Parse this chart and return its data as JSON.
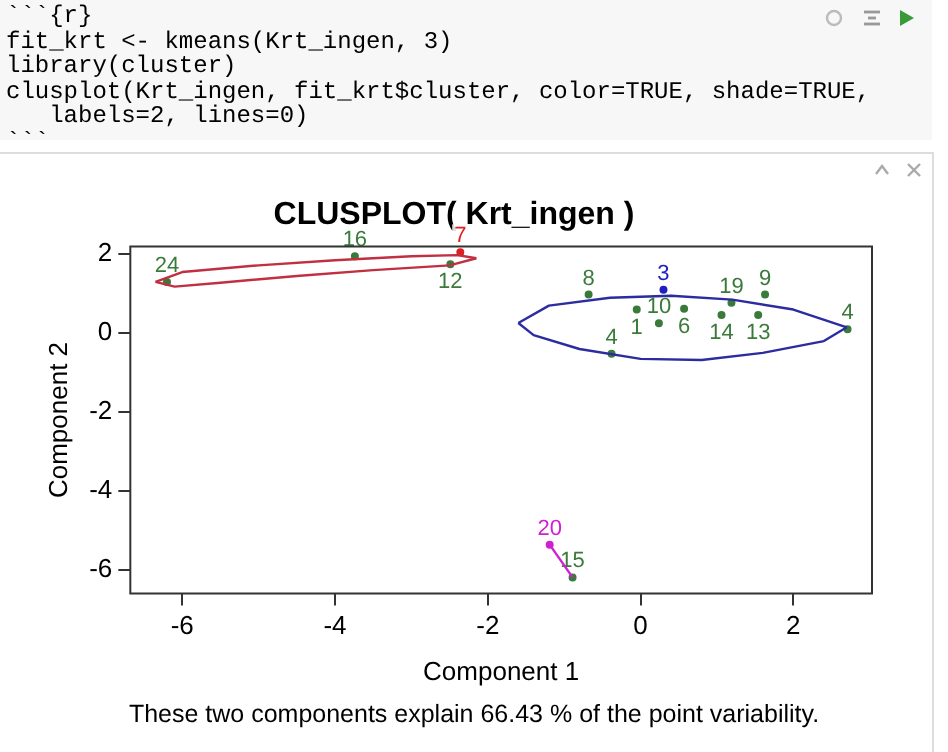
{
  "chart_data": {
    "type": "scatter",
    "title": "CLUSPLOT( Krt_ingen )",
    "xlabel": "Component 1",
    "ylabel": "Component 2",
    "annotations": [
      "```{r}",
      "fit_krt <- kmeans(Krt_ingen, 3)",
      "library(cluster)",
      "clusplot(Krt_ingen, fit_krt$cluster, color=TRUE, shade=TRUE,",
      "   labels=2, lines=0)",
      "```",
      "These two components explain 66.43 % of the point variability.",
      {
        "text": "24",
        "x": -6.2,
        "y": 1.3
      },
      {
        "text": "16",
        "x": -3.74,
        "y": 1.95
      },
      {
        "text": "7",
        "x": -2.36,
        "y": 2.05
      },
      {
        "text": "12",
        "x": -2.49,
        "y": 1.75
      },
      {
        "text": "8",
        "x": -0.68,
        "y": 0.98
      },
      {
        "text": "3",
        "x": 0.3,
        "y": 1.1
      },
      {
        "text": "1",
        "x": -0.05,
        "y": 0.6
      },
      {
        "text": "10",
        "x": 0.24,
        "y": 0.25
      },
      {
        "text": "6",
        "x": 0.57,
        "y": 0.62
      },
      {
        "text": "14",
        "x": 1.06,
        "y": 0.46
      },
      {
        "text": "19",
        "x": 1.19,
        "y": 0.77
      },
      {
        "text": "13",
        "x": 1.54,
        "y": 0.46
      },
      {
        "text": "9",
        "x": 1.63,
        "y": 0.98
      },
      {
        "text": "4",
        "x": 2.71,
        "y": 0.1
      },
      {
        "text": "4",
        "x": -0.38,
        "y": -0.52
      },
      {
        "text": "20",
        "x": -1.19,
        "y": -5.36
      },
      {
        "text": "15",
        "x": -0.89,
        "y": -6.19
      }
    ],
    "xlim": [
      -6.68,
      3.03
    ],
    "ylim": [
      -6.6,
      2.2
    ],
    "xticks": [
      -6,
      -4,
      -2,
      0,
      2
    ],
    "yticks": [
      -6,
      -4,
      -2,
      0,
      2
    ],
    "grid": false,
    "legend": false,
    "series": [
      {
        "type": "line",
        "marker": "none",
        "color": "#c03040",
        "x": [
          -6.35,
          -6.0,
          -5.0,
          -4.0,
          -3.0,
          -2.4,
          -2.15
        ],
        "values": [
          1.3,
          1.55,
          1.72,
          1.85,
          1.95,
          1.98,
          1.9
        ]
      },
      {
        "type": "line",
        "marker": "none",
        "color": "#c03040",
        "x": [
          -6.35,
          -6.1,
          -5.5,
          -4.5,
          -3.5,
          -2.5,
          -2.15
        ],
        "values": [
          1.3,
          1.18,
          1.28,
          1.45,
          1.6,
          1.72,
          1.9
        ]
      },
      {
        "type": "line",
        "marker": "none",
        "color": "#2c2ca0",
        "x": [
          -1.6,
          -1.2,
          -0.4,
          0.4,
          1.2,
          2.0,
          2.7
        ],
        "values": [
          0.26,
          0.7,
          0.9,
          0.95,
          0.85,
          0.6,
          0.15
        ]
      },
      {
        "type": "line",
        "marker": "none",
        "color": "#2c2ca0",
        "x": [
          -1.6,
          -1.4,
          -0.8,
          0.0,
          0.8,
          1.6,
          2.4,
          2.7
        ],
        "values": [
          0.26,
          -0.05,
          -0.4,
          -0.65,
          -0.68,
          -0.5,
          -0.2,
          0.15
        ]
      },
      {
        "type": "line",
        "marker": "none",
        "color": "#d020d0",
        "x": [
          -1.19,
          -0.89
        ],
        "values": [
          -5.36,
          -6.19
        ]
      },
      {
        "type": "scatter",
        "marker": "circle",
        "x": [
          -6.2,
          -3.74,
          -2.36,
          -2.49,
          -0.68,
          0.3,
          -0.05,
          0.24,
          0.57,
          1.06,
          1.19,
          1.54,
          1.63,
          2.71,
          -0.38,
          -1.19,
          -0.89
        ],
        "values": [
          1.3,
          1.95,
          2.05,
          1.75,
          0.98,
          1.1,
          0.6,
          0.25,
          0.62,
          0.46,
          0.77,
          0.46,
          0.98,
          0.1,
          -0.52,
          -5.36,
          -6.19
        ],
        "colors": [
          "#3a7a3a",
          "#3a7a3a",
          "#e02020",
          "#3a7a3a",
          "#3a7a3a",
          "#2020c0",
          "#3a7a3a",
          "#3a7a3a",
          "#3a7a3a",
          "#3a7a3a",
          "#3a7a3a",
          "#3a7a3a",
          "#3a7a3a",
          "#3a7a3a",
          "#3a7a3a",
          "#d020d0",
          "#3a7a3a"
        ]
      }
    ]
  }
}
